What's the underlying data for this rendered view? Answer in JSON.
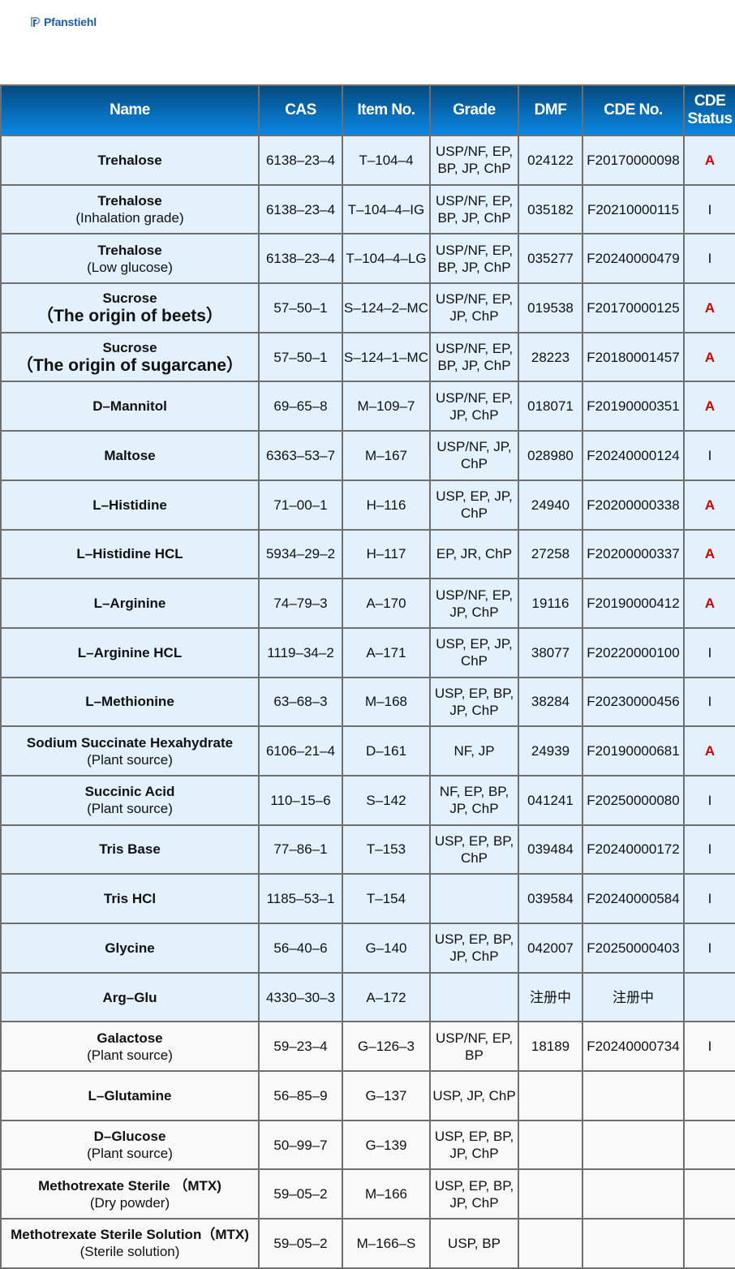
{
  "brand": {
    "logo_text": "Pfanstiehl",
    "logo_color": "#1b5fa8"
  },
  "colors": {
    "header_gradient": [
      "#044a7e",
      "#0a86e4"
    ],
    "row_blue": "#e3f1fd",
    "row_gray": "#f9f9f9",
    "status_active": "#d00000"
  },
  "table": {
    "headers": [
      "Name",
      "CAS",
      "Item No.",
      "Grade",
      "DMF",
      "CDE No.",
      "CDE Status"
    ],
    "rows": [
      {
        "name": "Trehalose",
        "sub": "",
        "cas": "6138–23–4",
        "item": "T–104–4",
        "grade": "USP/NF, EP, BP,  JP, ChP",
        "dmf": "024122",
        "cde": "F20170000098",
        "status": "A",
        "bg": "blue"
      },
      {
        "name": "Trehalose",
        "sub": "(Inhalation grade)",
        "cas": "6138–23–4",
        "item": "T–104–4–IG",
        "grade": "USP/NF, EP, BP,  JP, ChP",
        "dmf": "035182",
        "cde": "F20210000115",
        "status": "I",
        "bg": "blue"
      },
      {
        "name": "Trehalose",
        "sub": "(Low glucose)",
        "cas": "6138–23–4",
        "item": "T–104–4–LG",
        "grade": "USP/NF, EP, BP,  JP, ChP",
        "dmf": "035277",
        "cde": "F20240000479",
        "status": "I",
        "bg": "blue"
      },
      {
        "name": "Sucrose",
        "big": "（The origin of beets）",
        "cas": "57–50–1",
        "item": "S–124–2–MC",
        "grade": "USP/NF, EP, JP, ChP",
        "dmf": "019538",
        "cde": "F20170000125",
        "status": "A",
        "bg": "blue"
      },
      {
        "name": "Sucrose",
        "big": "（The origin of sugarcane）",
        "cas": "57–50–1",
        "item": "S–124–1–MC",
        "grade": "USP/NF, EP, BP,  JP, ChP",
        "dmf": "28223",
        "cde": "F20180001457",
        "status": "A",
        "bg": "blue"
      },
      {
        "name": "D–Mannitol",
        "sub": "",
        "cas": "69–65–8",
        "item": "M–109–7",
        "grade": "USP/NF, EP, JP, ChP",
        "dmf": "018071",
        "cde": "F20190000351",
        "status": "A",
        "bg": "blue"
      },
      {
        "name": "Maltose",
        "sub": "",
        "cas": "6363–53–7",
        "item": "M–167",
        "grade": "USP/NF, JP, ChP",
        "dmf": "028980",
        "cde": "F20240000124",
        "status": "I",
        "bg": "blue"
      },
      {
        "name": "L–Histidine",
        "sub": "",
        "cas": "71–00–1",
        "item": "H–116",
        "grade": "USP, EP, JP, ChP",
        "dmf": "24940",
        "cde": "F20200000338",
        "status": "A",
        "bg": "blue"
      },
      {
        "name": "L–Histidine HCL",
        "sub": "",
        "cas": "5934–29–2",
        "item": "H–117",
        "grade": "EP, JR, ChP",
        "dmf": "27258",
        "cde": "F20200000337",
        "status": "A",
        "bg": "blue"
      },
      {
        "name": "L–Arginine",
        "sub": "",
        "cas": "74–79–3",
        "item": "A–170",
        "grade": "USP/NF, EP, JP, ChP",
        "dmf": "19116",
        "cde": "F20190000412",
        "status": "A",
        "bg": "blue"
      },
      {
        "name": "L–Arginine HCL",
        "sub": "",
        "cas": "1119–34–2",
        "item": "A–171",
        "grade": "USP, EP, JP, ChP",
        "dmf": "38077",
        "cde": "F20220000100",
        "status": "I",
        "bg": "blue"
      },
      {
        "name": "L–Methionine",
        "sub": "",
        "cas": "63–68–3",
        "item": "M–168",
        "grade": "USP, EP, BP, JP, ChP",
        "dmf": "38284",
        "cde": "F20230000456",
        "status": "I",
        "bg": "blue"
      },
      {
        "name": "Sodium Succinate Hexahydrate",
        "sub": "(Plant source)",
        "cas": "6106–21–4",
        "item": "D–161",
        "grade": "NF, JP",
        "dmf": "24939",
        "cde": "F20190000681",
        "status": "A",
        "bg": "blue"
      },
      {
        "name": "Succinic Acid",
        "sub": "(Plant source)",
        "cas": "110–15–6",
        "item": "S–142",
        "grade": "NF, EP, BP, JP, ChP",
        "dmf": "041241",
        "cde": "F20250000080",
        "status": "I",
        "bg": "blue"
      },
      {
        "name": "Tris Base",
        "sub": "",
        "cas": "77–86–1",
        "item": "T–153",
        "grade": "USP, EP, BP, ChP",
        "dmf": "039484",
        "cde": "F20240000172",
        "status": "I",
        "bg": "blue"
      },
      {
        "name": "Tris HCl",
        "sub": "",
        "cas": "1185–53–1",
        "item": "T–154",
        "grade": "",
        "dmf": "039584",
        "cde": "F20240000584",
        "status": "I",
        "bg": "blue"
      },
      {
        "name": "Glycine",
        "sub": "",
        "cas": "56–40–6",
        "item": "G–140",
        "grade": "USP, EP, BP, JP, ChP",
        "dmf": "042007",
        "cde": "F20250000403",
        "status": "I",
        "bg": "blue"
      },
      {
        "name": "Arg–Glu",
        "sub": "",
        "cas": "4330–30–3",
        "item": "A–172",
        "grade": "",
        "dmf": "注册中",
        "cde": "注册中",
        "status": "",
        "bg": "blue"
      },
      {
        "name": "Galactose",
        "sub": "(Plant source)",
        "cas": "59–23–4",
        "item": "G–126–3",
        "grade": "USP/NF, EP, BP",
        "dmf": "18189",
        "cde": "F20240000734",
        "status": "I",
        "bg": "gray"
      },
      {
        "name": "L–Glutamine",
        "sub": "",
        "cas": "56–85–9",
        "item": "G–137",
        "grade": "USP, JP, ChP",
        "dmf": "",
        "cde": "",
        "status": "",
        "bg": "gray"
      },
      {
        "name": "D–Glucose",
        "sub": "(Plant source)",
        "cas": "50–99–7",
        "item": "G–139",
        "grade": "USP, EP, BP, JP, ChP",
        "dmf": "",
        "cde": "",
        "status": "",
        "bg": "gray"
      },
      {
        "name": "Methotrexate Sterile （MTX)",
        "sub": "(Dry powder)",
        "cas": "59–05–2",
        "item": "M–166",
        "grade": "USP, EP, BP, JP, ChP",
        "dmf": "",
        "cde": "",
        "status": "",
        "bg": "gray"
      },
      {
        "name": "Methotrexate Sterile Solution（MTX)",
        "sub": "(Sterile solution)",
        "cas": "59–05–2",
        "item": "M–166–S",
        "grade": "USP, BP",
        "dmf": "",
        "cde": "",
        "status": "",
        "bg": "gray"
      }
    ]
  }
}
